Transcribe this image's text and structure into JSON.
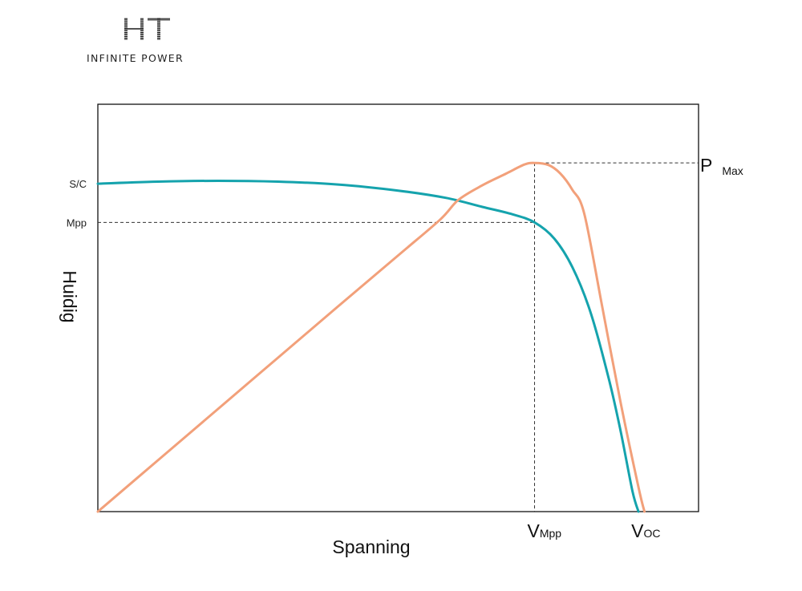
{
  "brand": {
    "mark": "HT",
    "tagline": "INFINITE POWER",
    "mark_color": "#1a1a1a"
  },
  "chart_data": {
    "type": "line",
    "title": "",
    "xlabel": "Spanning",
    "ylabel": "Huidig",
    "xlim": [
      0,
      1
    ],
    "ylim": [
      0,
      1
    ],
    "grid": false,
    "legend": "none",
    "y_markers": [
      {
        "label": "S/C",
        "value": 0.805
      },
      {
        "label": "Mpp",
        "value": 0.71
      }
    ],
    "x_markers": [
      {
        "label_main": "V",
        "label_sub": "Mpp",
        "value": 0.727
      },
      {
        "label_main": "V",
        "label_sub": "OC",
        "value": 0.9
      }
    ],
    "pmax_label": {
      "main": "P",
      "sub": "Max",
      "value": 0.856
    },
    "series": [
      {
        "color": "#15a3ad",
        "x": [
          0,
          0.1,
          0.2,
          0.3,
          0.4,
          0.5,
          0.58,
          0.64,
          0.69,
          0.727,
          0.76,
          0.79,
          0.82,
          0.85,
          0.87,
          0.89,
          0.9
        ],
        "y": [
          0.805,
          0.81,
          0.812,
          0.81,
          0.803,
          0.788,
          0.77,
          0.748,
          0.73,
          0.71,
          0.67,
          0.6,
          0.49,
          0.33,
          0.2,
          0.05,
          0
        ]
      },
      {
        "color": "#f2a07a",
        "x": [
          0,
          0.1,
          0.2,
          0.3,
          0.4,
          0.5,
          0.57,
          0.6,
          0.64,
          0.68,
          0.71,
          0.727,
          0.75,
          0.77,
          0.79,
          0.81,
          0.84,
          0.87,
          0.9,
          0.91
        ],
        "y": [
          0,
          0.126,
          0.252,
          0.378,
          0.504,
          0.629,
          0.717,
          0.765,
          0.801,
          0.83,
          0.852,
          0.856,
          0.851,
          0.83,
          0.79,
          0.73,
          0.5,
          0.27,
          0.06,
          0
        ]
      }
    ]
  }
}
